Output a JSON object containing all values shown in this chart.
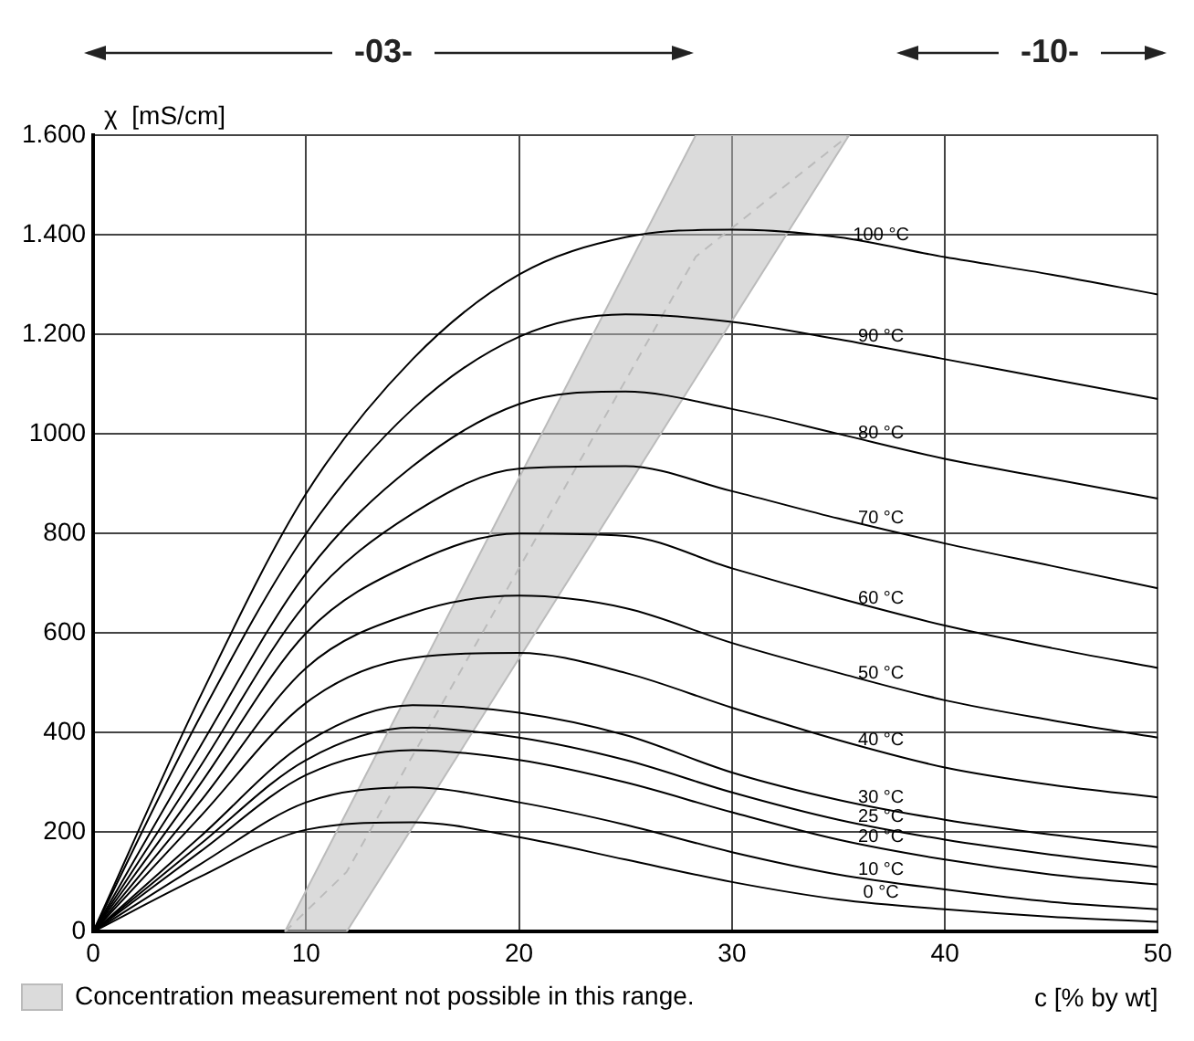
{
  "chart_data": {
    "type": "line",
    "xlabel": "c [% by wt]",
    "ylabel": "χ  [mS/cm]",
    "annotations": [
      "-03-",
      "-10-"
    ],
    "xlim": [
      0,
      50
    ],
    "xticks": [
      0,
      10,
      20,
      30,
      40,
      50
    ],
    "ylim": [
      0,
      1600
    ],
    "yticks": [
      0,
      200,
      400,
      600,
      800,
      1000,
      {
        "value": 1200,
        "label": "1.200"
      },
      {
        "value": 1400,
        "label": "1.400"
      },
      {
        "value": 1600,
        "label": "1.600"
      }
    ],
    "grid": true,
    "legend": "bottom left",
    "marker": "none",
    "line_style": "solid",
    "x": [
      0,
      5,
      10,
      15,
      20,
      25,
      30,
      35,
      40,
      45,
      50
    ],
    "series": [
      {
        "name": "100 °C",
        "color": "#000000",
        "values": [
          0,
          470,
          880,
          1150,
          1320,
          1395,
          1410,
          1395,
          1355,
          1320,
          1280
        ]
      },
      {
        "name": "90 °C",
        "color": "#000000",
        "values": [
          0,
          430,
          800,
          1050,
          1195,
          1240,
          1225,
          1190,
          1150,
          1110,
          1070
        ]
      },
      {
        "name": "80 °C",
        "color": "#000000",
        "values": [
          0,
          370,
          720,
          935,
          1060,
          1085,
          1050,
          1000,
          950,
          910,
          870
        ]
      },
      {
        "name": "70 °C",
        "color": "#000000",
        "values": [
          0,
          330,
          660,
          840,
          930,
          935,
          885,
          830,
          780,
          735,
          690
        ]
      },
      {
        "name": "60 °C",
        "color": "#000000",
        "values": [
          0,
          295,
          600,
          740,
          800,
          795,
          730,
          670,
          615,
          570,
          530
        ]
      },
      {
        "name": "50 °C",
        "color": "#000000",
        "values": [
          0,
          260,
          530,
          640,
          675,
          650,
          580,
          520,
          465,
          425,
          390
        ]
      },
      {
        "name": "40 °C",
        "color": "#000000",
        "values": [
          0,
          230,
          460,
          550,
          560,
          520,
          450,
          385,
          330,
          295,
          270
        ]
      },
      {
        "name": "30 °C",
        "color": "#000000",
        "values": [
          0,
          190,
          380,
          455,
          440,
          395,
          320,
          265,
          225,
          195,
          170
        ]
      },
      {
        "name": "25 °C",
        "color": "#000000",
        "values": [
          0,
          175,
          345,
          410,
          390,
          345,
          280,
          225,
          185,
          155,
          130
        ]
      },
      {
        "name": "20 °C",
        "color": "#000000",
        "values": [
          0,
          160,
          315,
          365,
          345,
          300,
          240,
          185,
          145,
          115,
          95
        ]
      },
      {
        "name": "10 °C",
        "color": "#000000",
        "values": [
          0,
          135,
          260,
          290,
          260,
          215,
          160,
          115,
          85,
          60,
          45
        ]
      },
      {
        "name": "0 °C",
        "color": "#000000",
        "values": [
          0,
          110,
          205,
          220,
          190,
          145,
          100,
          65,
          45,
          30,
          20
        ]
      },
      {
        "name": "Concentration measurement not possible in this range.",
        "color": "#bbbbbb",
        "line_style": "dashed",
        "x": [
          9,
          11.9,
          28.3,
          35.5
        ],
        "values": [
          0,
          120,
          1356,
          1600
        ],
        "lower": [
          0,
          0,
          1112,
          1600
        ],
        "upper": [
          0,
          240,
          1600,
          1600
        ]
      }
    ]
  }
}
